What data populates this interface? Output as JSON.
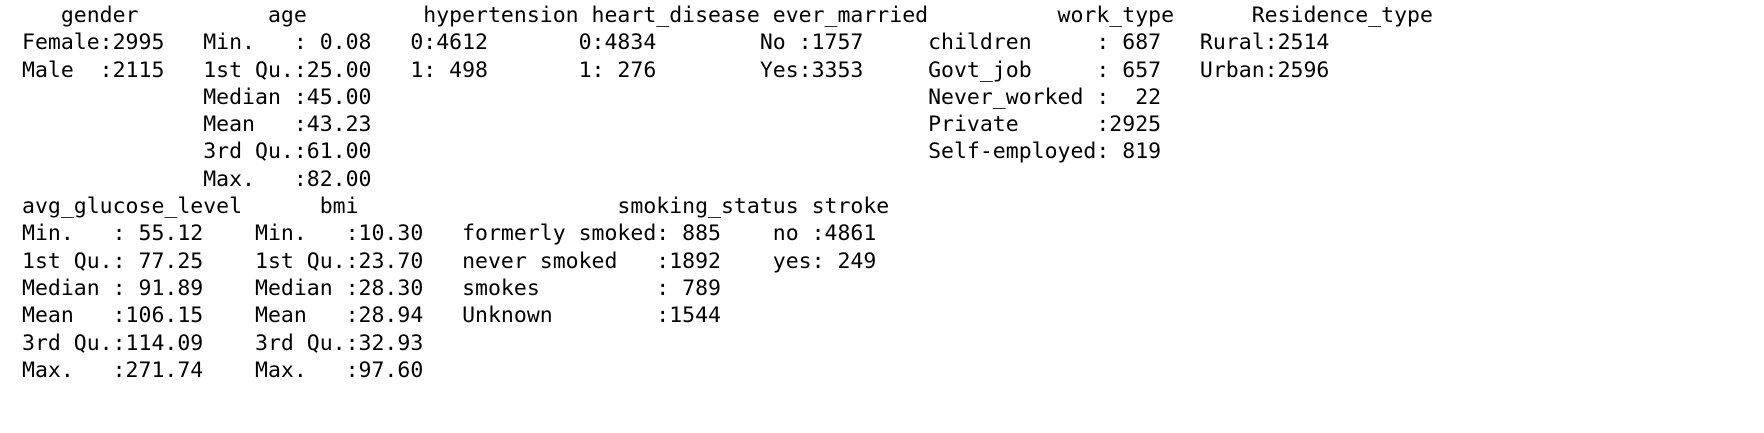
{
  "console_output": {
    "lines": [
      "   gender          age         hypertension heart_disease ever_married          work_type      Residence_type",
      "Female:2995   Min.   : 0.08   0:4612       0:4834        No :1757     children     : 687   Rural:2514",
      "Male  :2115   1st Qu.:25.00   1: 498       1: 276        Yes:3353     Govt_job     : 657   Urban:2596",
      "              Median :45.00                                           Never_worked :  22",
      "              Mean   :43.23                                           Private      :2925",
      "              3rd Qu.:61.00                                           Self-employed: 819",
      "              Max.   :82.00",
      "avg_glucose_level      bmi                    smoking_status stroke",
      "Min.   : 55.12    Min.   :10.30   formerly smoked: 885    no :4861",
      "1st Qu.: 77.25    1st Qu.:23.70   never smoked   :1892    yes: 249",
      "Median : 91.89    Median :28.30   smokes         : 789",
      "Mean   :106.15    Mean   :28.94   Unknown        :1544",
      "3rd Qu.:114.09    3rd Qu.:32.93",
      "Max.   :271.74    Max.   :97.60"
    ]
  }
}
